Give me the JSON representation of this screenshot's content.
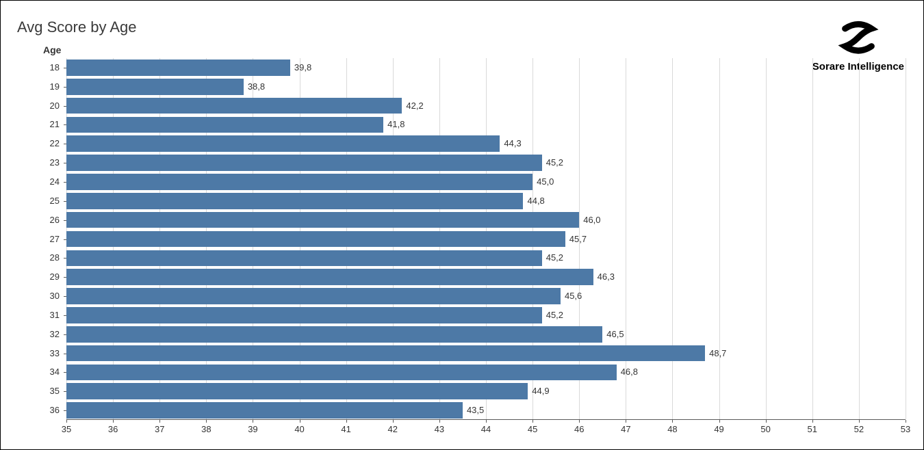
{
  "chart": {
    "title": "Avg Score by Age",
    "type": "bar-horizontal",
    "y_axis_label": "Age",
    "background_color": "#ffffff",
    "bar_color": "#4d79a6",
    "gridline_color": "#d9d9d9",
    "axis_line_color": "#5a5a5a",
    "text_color": "#333333",
    "title_color": "#3a3a3a",
    "title_fontsize": 22,
    "tick_fontsize": 13,
    "axis_label_fontsize": 14,
    "xlim": [
      35,
      53
    ],
    "xtick_step": 1,
    "bar_height_ratio": 0.85,
    "categories": [
      "18",
      "19",
      "20",
      "21",
      "22",
      "23",
      "24",
      "25",
      "26",
      "27",
      "28",
      "29",
      "30",
      "31",
      "32",
      "33",
      "34",
      "35",
      "36"
    ],
    "values": [
      39.8,
      38.8,
      42.2,
      41.8,
      44.3,
      45.2,
      45.0,
      44.8,
      46.0,
      45.7,
      45.2,
      46.3,
      45.6,
      45.2,
      46.5,
      48.7,
      46.8,
      44.9,
      43.5
    ],
    "value_labels": [
      "39,8",
      "38,8",
      "42,2",
      "41,8",
      "44,3",
      "45,2",
      "45,0",
      "44,8",
      "46,0",
      "45,7",
      "45,2",
      "46,3",
      "45,6",
      "45,2",
      "46,5",
      "48,7",
      "46,8",
      "44,9",
      "43,5"
    ]
  },
  "logo": {
    "text": "Sorare Intelligence",
    "icon_color": "#000000"
  }
}
